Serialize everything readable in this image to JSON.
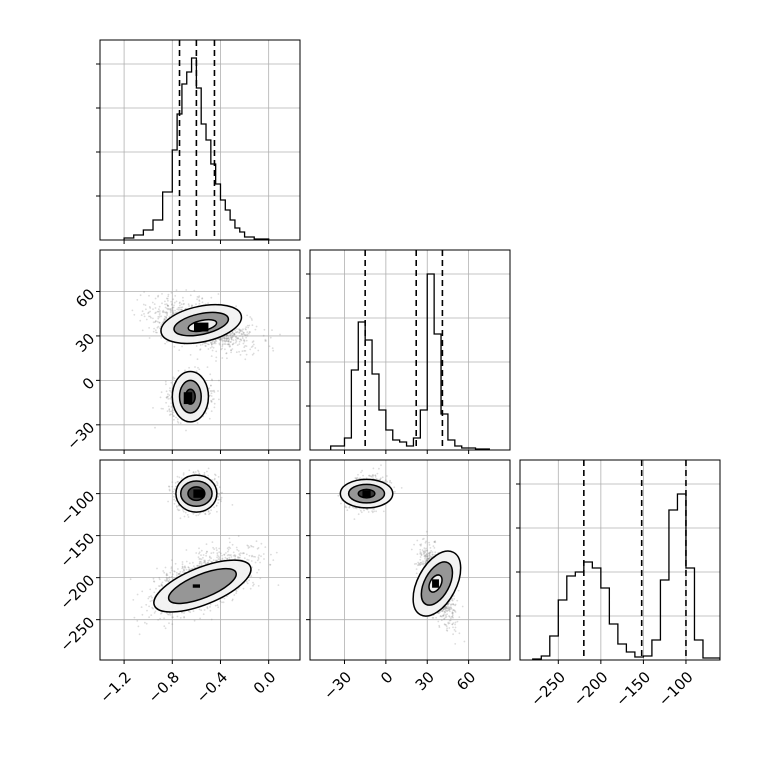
{
  "chart_data": {
    "type": "corner",
    "title": "",
    "grid": true,
    "colors": {
      "line": "#000000",
      "grid": "#b0b0b0",
      "points": "#808080",
      "fill_light": "#f2f2f2",
      "fill_mid": "#8c8c8c",
      "fill_dark": "#2e2e2e",
      "peak": "#000000"
    },
    "parameters": [
      {
        "xlim": [
          -1.4,
          0.26
        ],
        "ticks": [
          -1.2,
          -0.8,
          -0.4,
          0.0
        ],
        "tick_labels": [
          "−1.2",
          "−0.8",
          "−0.4",
          "0.0"
        ]
      },
      {
        "xlim": [
          -55,
          90
        ],
        "ticks": [
          -30,
          0,
          30,
          60
        ],
        "tick_labels": [
          "−30",
          "0",
          "30",
          "60"
        ]
      },
      {
        "xlim": [
          -295,
          -60
        ],
        "ticks": [
          -250,
          -200,
          -150,
          -100
        ],
        "tick_labels": [
          "−250",
          "−200",
          "−150",
          "−100"
        ]
      }
    ],
    "row_tick_labels": [
      {
        "row": 1,
        "ticks": [
          -30,
          0,
          30,
          60
        ],
        "labels": [
          "−30",
          "0",
          "30",
          "60"
        ]
      },
      {
        "row": 2,
        "ticks": [
          -250,
          -200,
          -150,
          -100
        ],
        "labels": [
          "−250",
          "−200",
          "−150",
          "−100"
        ]
      }
    ],
    "histograms": [
      {
        "param": 0,
        "ylim": [
          0,
          1.0
        ],
        "bin_edges": [
          -1.2,
          -1.12,
          -1.04,
          -0.96,
          -0.88,
          -0.8,
          -0.76,
          -0.72,
          -0.68,
          -0.64,
          -0.6,
          -0.56,
          -0.52,
          -0.48,
          -0.44,
          -0.4,
          -0.36,
          -0.32,
          -0.28,
          -0.24,
          -0.2,
          -0.12,
          0.0
        ],
        "values": [
          0.01,
          0.025,
          0.05,
          0.1,
          0.24,
          0.45,
          0.63,
          0.78,
          0.84,
          0.91,
          0.76,
          0.58,
          0.5,
          0.38,
          0.28,
          0.2,
          0.15,
          0.1,
          0.06,
          0.04,
          0.015,
          0.005
        ],
        "quantiles": [
          -0.74,
          -0.6,
          -0.45
        ]
      },
      {
        "param": 1,
        "ylim": [
          0,
          1.0
        ],
        "bin_edges": [
          -40,
          -30,
          -25,
          -20,
          -15,
          -10,
          -5,
          0,
          5,
          10,
          15,
          20,
          25,
          30,
          35,
          40,
          45,
          50,
          55,
          65,
          75
        ],
        "values": [
          0.02,
          0.06,
          0.4,
          0.64,
          0.55,
          0.38,
          0.2,
          0.1,
          0.05,
          0.04,
          0.02,
          0.06,
          0.2,
          0.88,
          0.58,
          0.18,
          0.05,
          0.02,
          0.01,
          0.005
        ],
        "quantiles": [
          -15,
          22,
          41
        ]
      },
      {
        "param": 2,
        "ylim": [
          0,
          1.0
        ],
        "bin_edges": [
          -280,
          -270,
          -260,
          -250,
          -240,
          -230,
          -220,
          -210,
          -200,
          -190,
          -180,
          -170,
          -160,
          -150,
          -140,
          -130,
          -120,
          -110,
          -100,
          -90,
          -80,
          -60
        ],
        "values": [
          0.005,
          0.02,
          0.12,
          0.3,
          0.42,
          0.44,
          0.49,
          0.46,
          0.36,
          0.18,
          0.08,
          0.04,
          0.015,
          0.02,
          0.1,
          0.4,
          0.75,
          0.83,
          0.46,
          0.1,
          0.01
        ],
        "quantiles": [
          -220,
          -152,
          -100
        ]
      }
    ],
    "scatter_panels": [
      {
        "x_param": 0,
        "y_param": 1,
        "ylim": [
          -47,
          88
        ],
        "clusters": [
          {
            "center": [
              -0.55,
              37
            ],
            "spread": [
              0.2,
              8
            ],
            "corr": -0.45,
            "count": 1400
          },
          {
            "center": [
              -0.65,
              -11
            ],
            "spread": [
              0.075,
              7
            ],
            "corr": 0.05,
            "count": 1200
          }
        ],
        "contours": [
          {
            "center": [
              -0.56,
              38
            ],
            "rx": 0.34,
            "ry": 12,
            "angle": -12
          },
          {
            "center": [
              -0.56,
              38
            ],
            "rx": 0.23,
            "ry": 7,
            "angle": -12
          },
          {
            "center": [
              -0.55,
              37
            ],
            "rx": 0.12,
            "ry": 3.5,
            "angle": -12
          },
          {
            "center": [
              -0.65,
              -11
            ],
            "rx": 0.15,
            "ry": 17,
            "angle": 0
          },
          {
            "center": [
              -0.65,
              -11
            ],
            "rx": 0.09,
            "ry": 11,
            "angle": 0
          },
          {
            "center": [
              -0.65,
              -11
            ],
            "rx": 0.04,
            "ry": 5,
            "angle": 0
          }
        ],
        "peaks": [
          {
            "center": [
              -0.56,
              36
            ],
            "rx": 0.06,
            "ry": 3
          },
          {
            "center": [
              -0.67,
              -12
            ],
            "rx": 0.035,
            "ry": 4
          }
        ]
      },
      {
        "x_param": 0,
        "y_param": 2,
        "ylim": [
          -298,
          -60
        ],
        "clusters": [
          {
            "center": [
              -0.6,
              -100
            ],
            "spread": [
              0.08,
              10
            ],
            "corr": 0.0,
            "count": 1100
          },
          {
            "center": [
              -0.55,
              -205
            ],
            "spread": [
              0.2,
              18
            ],
            "corr": 0.6,
            "count": 1600
          }
        ],
        "contours": [
          {
            "center": [
              -0.6,
              -100
            ],
            "rx": 0.17,
            "ry": 22,
            "angle": 0
          },
          {
            "center": [
              -0.6,
              -100
            ],
            "rx": 0.13,
            "ry": 15,
            "angle": 0
          },
          {
            "center": [
              -0.6,
              -100
            ],
            "rx": 0.07,
            "ry": 8,
            "angle": 0
          },
          {
            "center": [
              -0.55,
              -210
            ],
            "rx": 0.43,
            "ry": 22,
            "angle": -22
          },
          {
            "center": [
              -0.55,
              -210
            ],
            "rx": 0.3,
            "ry": 14,
            "angle": -22
          }
        ],
        "peaks": [
          {
            "center": [
              -0.58,
              -100
            ],
            "rx": 0.045,
            "ry": 5
          },
          {
            "center": [
              -0.6,
              -210
            ],
            "rx": 0.03,
            "ry": 2
          }
        ]
      },
      {
        "x_param": 1,
        "y_param": 2,
        "ylim": [
          -298,
          -60
        ],
        "clusters": [
          {
            "center": [
              -14,
              -100
            ],
            "spread": [
              7,
              9
            ],
            "corr": 0.2,
            "count": 1100
          },
          {
            "center": [
              37,
              -208
            ],
            "spread": [
              6,
              20
            ],
            "corr": -0.6,
            "count": 1300
          }
        ],
        "contours": [
          {
            "center": [
              -14,
              -100
            ],
            "rx": 19,
            "ry": 17,
            "angle": 0
          },
          {
            "center": [
              -14,
              -100
            ],
            "rx": 13,
            "ry": 11,
            "angle": 0
          },
          {
            "center": [
              -14,
              -100
            ],
            "rx": 6,
            "ry": 5,
            "angle": 0
          },
          {
            "center": [
              37,
              -207
            ],
            "rx": 14,
            "ry": 42,
            "angle": 28
          },
          {
            "center": [
              37,
              -207
            ],
            "rx": 9,
            "ry": 28,
            "angle": 28
          },
          {
            "center": [
              36,
              -207
            ],
            "rx": 4,
            "ry": 11,
            "angle": 28
          }
        ],
        "peaks": [
          {
            "center": [
              -14,
              -100
            ],
            "rx": 3,
            "ry": 4
          },
          {
            "center": [
              36,
              -207
            ],
            "rx": 2.5,
            "ry": 5
          }
        ]
      }
    ]
  }
}
